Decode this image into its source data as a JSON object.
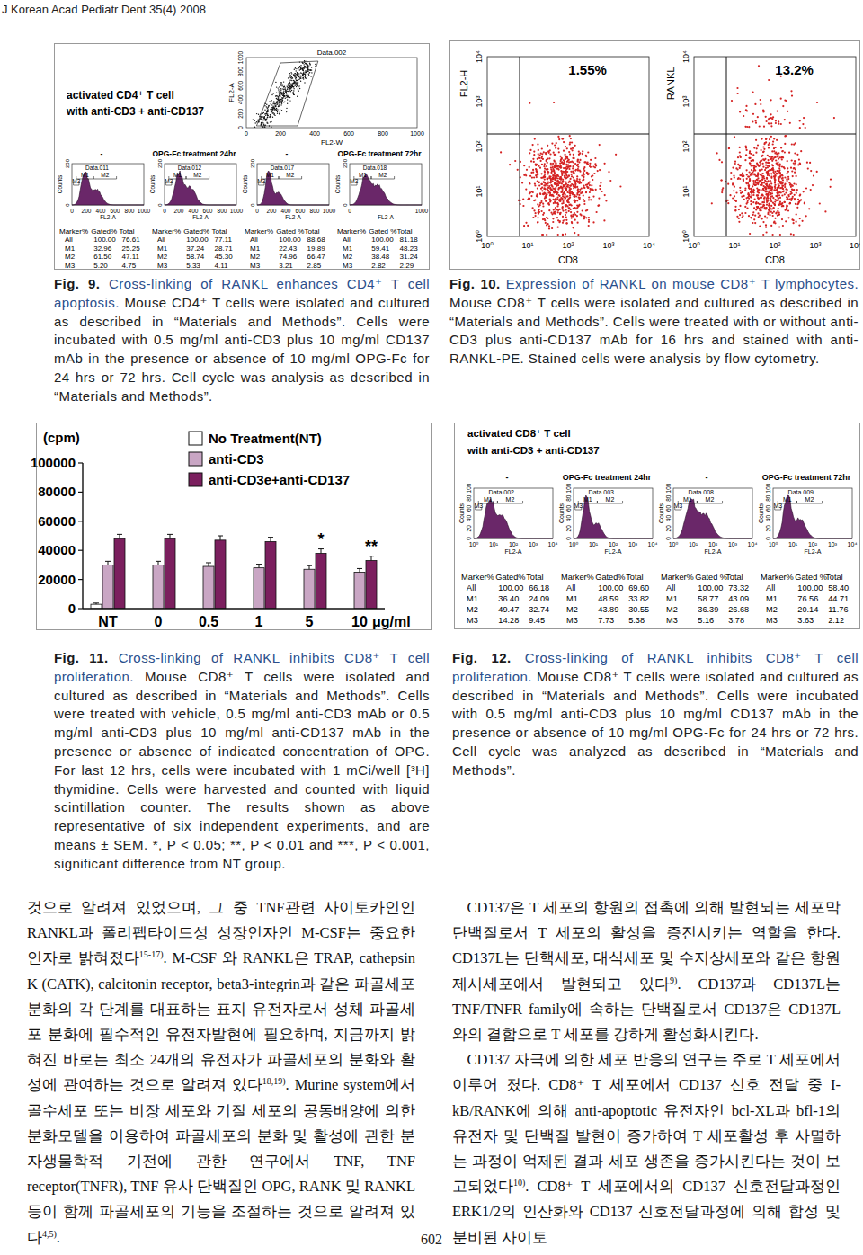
{
  "header": {
    "journal": "J Korean Acad Pediatr Dent 35(4) 2008"
  },
  "fig9": {
    "panel": {
      "title": [
        "activated CD4⁺ T cell",
        "with anti-CD3 + anti-CD137"
      ],
      "dotplot": {
        "title": "Data.002",
        "xlabel": "FL2-W",
        "ylabel": "FL2-A",
        "xticks": [
          "0",
          "200",
          "400",
          "600",
          "800",
          "1000"
        ],
        "yticks": [
          "0",
          "200",
          "400",
          "600",
          "800",
          "1000"
        ]
      },
      "histograms": [
        {
          "condition": "-",
          "data": "Data.011",
          "xlabel": "FL2-A",
          "ylabel": "Counts",
          "xticks": [
            "0",
            "200",
            "400",
            "600",
            "800",
            "1000"
          ],
          "yticks": [
            "0",
            "200"
          ],
          "markers": [
            "M1",
            "M2",
            "M3"
          ],
          "table": {
            "header": [
              "Marker%",
              "Gated%",
              "Total"
            ],
            "rows": [
              [
                "All",
                "100.00",
                "76.61"
              ],
              [
                "M1",
                "32.96",
                "25.25"
              ],
              [
                "M2",
                "61.50",
                "47.11"
              ],
              [
                "M3",
                "5.20",
                "4.75"
              ]
            ]
          }
        },
        {
          "condition": "OPG-Fc treatment 24hr",
          "data": "Data.012",
          "xlabel": "FL2-A",
          "ylabel": "Counts",
          "xticks": [
            "0",
            "200",
            "400",
            "600",
            "800",
            "1000"
          ],
          "yticks": [
            "0",
            "200"
          ],
          "markers": [
            "M1",
            "M2",
            "M3"
          ],
          "table": {
            "header": [
              "Marker%",
              "Gated%",
              "Total"
            ],
            "rows": [
              [
                "All",
                "100.00",
                "77.11"
              ],
              [
                "M1",
                "37.24",
                "28.71"
              ],
              [
                "M2",
                "58.74",
                "45.30"
              ],
              [
                "M3",
                "5.33",
                "4.11"
              ]
            ]
          }
        },
        {
          "condition": "-",
          "data": "Data.017",
          "xlabel": "FL2-A",
          "ylabel": "Counts",
          "xticks": [
            "0",
            "200",
            "400",
            "600",
            "800",
            "1000"
          ],
          "yticks": [
            "0",
            "200"
          ],
          "markers": [
            "M1",
            "M2",
            "M3"
          ],
          "table": {
            "header": [
              "Marker%",
              "Gated %",
              "Total"
            ],
            "rows": [
              [
                "All",
                "100.00",
                "88.68"
              ],
              [
                "M1",
                "22.43",
                "19.89"
              ],
              [
                "M2",
                "74.96",
                "66.47"
              ],
              [
                "M3",
                "3.21",
                "2.85"
              ]
            ]
          }
        },
        {
          "condition": "OPG-Fc treatment 72hr",
          "data": "Data.018",
          "xlabel": "FL2-A",
          "ylabel": "Counts",
          "xticks": [
            "0",
            "1000"
          ],
          "yticks": [
            "0",
            "200"
          ],
          "markers": [
            "M1",
            "M2",
            "M3"
          ],
          "table": {
            "header": [
              "Marker%",
              "Gated %",
              "Total"
            ],
            "rows": [
              [
                "All",
                "100.00",
                "81.18"
              ],
              [
                "M1",
                "59.41",
                "48.23"
              ],
              [
                "M2",
                "38.48",
                "31.24"
              ],
              [
                "M3",
                "2.82",
                "2.29"
              ]
            ]
          }
        }
      ]
    },
    "caption": {
      "label": "Fig. 9.",
      "title": "Cross-linking of RANKL enhances CD4⁺ T cell apoptosis.",
      "body": "Mouse CD4⁺ T cells were isolated and cultured as described in “Materials and Methods”. Cells were incubated with 0.5 mg/ml anti-CD3 plus 10 mg/ml CD137 mAb in the presence or absence of 10 mg/ml OPG-Fc for 24 hrs or 72 hrs. Cell cycle was analysis as described in “Materials and Methods”."
    }
  },
  "fig10": {
    "panel": {
      "ticks": [
        "10⁰",
        "10¹",
        "10²",
        "10³",
        "10⁴"
      ],
      "plots": [
        {
          "percent": "1.55%",
          "ylabel": "FL2-H",
          "xlabel": "CD8"
        },
        {
          "percent": "13.2%",
          "ylabel": "RANKL",
          "xlabel": "CD8"
        }
      ]
    },
    "caption": {
      "label": "Fig. 10.",
      "title": "Expression of RANKL on mouse CD8⁺ T lymphocytes.",
      "body": "Mouse CD8⁺ T cells were isolated and cultured as described in “Materials and Methods”. Cells were treated with or without anti-CD3 plus anti-CD137 mAb for 16 hrs and stained with anti-RANKL-PE. Stained cells were analysis by flow cytometry."
    }
  },
  "chart_data": {
    "type": "bar",
    "ylabel": "(cpm)",
    "xlabel": "μg/ml",
    "categories": [
      "NT",
      "0",
      "0.5",
      "1",
      "5",
      "10"
    ],
    "series": [
      {
        "name": "No Treatment(NT)",
        "color": "#ffffff",
        "values": [
          3000,
          null,
          null,
          null,
          null,
          null
        ],
        "errors": [
          800,
          null,
          null,
          null,
          null,
          null
        ]
      },
      {
        "name": "anti-CD3",
        "color": "#c9a6c4",
        "values": [
          30000,
          30000,
          29000,
          28000,
          27000,
          25000
        ],
        "errors": [
          2500,
          2500,
          2500,
          2500,
          2500,
          2500
        ]
      },
      {
        "name": "anti-CD3e+anti-CD137",
        "color": "#7b1f5e",
        "values": [
          48000,
          48000,
          47000,
          46000,
          38000,
          33000
        ],
        "errors": [
          3000,
          3000,
          3000,
          3000,
          3000,
          3000
        ]
      }
    ],
    "ylim": [
      0,
      100000
    ],
    "yticks": [
      0,
      20000,
      40000,
      60000,
      80000,
      100000
    ],
    "grid": false,
    "legend": "top-right",
    "annotations": [
      {
        "category": "5",
        "text": "*"
      },
      {
        "category": "10",
        "text": "**"
      }
    ]
  },
  "fig11": {
    "caption": {
      "label": "Fig. 11.",
      "title": "Cross-linking of RANKL inhibits CD8⁺ T cell proliferation.",
      "body": "Mouse CD8⁺ T cells were isolated and cultured as described in “Materials and Methods”. Cells were treated with vehicle, 0.5 mg/ml anti-CD3 mAb or 0.5 mg/ml anti-CD3 plus 10 mg/ml anti-CD137 mAb in the presence or absence of indicated concentration of OPG. For last 12 hrs, cells were incubated with 1 mCi/well [³H] thymidine. Cells were harvested and counted with liquid scintillation counter. The results shown as above representative of six independent experiments, and are means ± SEM. *, P < 0.05; **, P < 0.01 and ***, P < 0.001, significant difference from NT group."
    }
  },
  "fig12": {
    "panel": {
      "title": [
        "activated CD8⁺ T cell",
        "with anti-CD3 + anti-CD137"
      ],
      "histograms": [
        {
          "condition": "-",
          "data": "Data.002",
          "xlabel": "FL2-A",
          "ylabel": "Counts",
          "xticks": [
            "10⁰",
            "10¹",
            "10²",
            "10³",
            "10⁴"
          ],
          "yticks": [
            "0",
            "20",
            "40",
            "60",
            "80",
            "100"
          ],
          "markers": [
            "M1",
            "M2",
            "M3"
          ],
          "table": {
            "header": [
              "Marker%",
              "Gated%",
              "Total"
            ],
            "rows": [
              [
                "All",
                "100.00",
                "66.18"
              ],
              [
                "M1",
                "36.40",
                "24.09"
              ],
              [
                "M2",
                "49.47",
                "32.74"
              ],
              [
                "M3",
                "14.28",
                "9.45"
              ]
            ]
          }
        },
        {
          "condition": "OPG-Fc treatment 24hr",
          "data": "Data.003",
          "xlabel": "FL2-A",
          "ylabel": "Counts",
          "xticks": [
            "10⁰",
            "10¹",
            "10²",
            "10³",
            "10⁴"
          ],
          "yticks": [
            "0",
            "20",
            "40",
            "60",
            "80",
            "100"
          ],
          "markers": [
            "M1",
            "M2",
            "M3"
          ],
          "table": {
            "header": [
              "Marker%",
              "Gated%",
              "Total"
            ],
            "rows": [
              [
                "All",
                "100.00",
                "69.60"
              ],
              [
                "M1",
                "48.59",
                "33.82"
              ],
              [
                "M2",
                "43.89",
                "30.55"
              ],
              [
                "M3",
                "7.73",
                "5.38"
              ]
            ]
          }
        },
        {
          "condition": "-",
          "data": "Data.008",
          "xlabel": "FL2-A",
          "ylabel": "Counts",
          "xticks": [
            "10⁰",
            "10¹",
            "10²",
            "10³",
            "10⁴"
          ],
          "yticks": [
            "0",
            "20",
            "40",
            "60",
            "80",
            "100"
          ],
          "markers": [
            "M1",
            "M2",
            "M3"
          ],
          "table": {
            "header": [
              "Marker%",
              "Gated %",
              "Total"
            ],
            "rows": [
              [
                "All",
                "100.00",
                "73.32"
              ],
              [
                "M1",
                "58.77",
                "43.09"
              ],
              [
                "M2",
                "36.39",
                "26.68"
              ],
              [
                "M3",
                "5.16",
                "3.78"
              ]
            ]
          }
        },
        {
          "condition": "OPG-Fc treatment 72hr",
          "data": "Data.009",
          "xlabel": "FL2-A",
          "ylabel": "Counts",
          "xticks": [
            "10⁰",
            "10¹",
            "10²",
            "10³",
            "10⁴"
          ],
          "yticks": [
            "0",
            "20",
            "40",
            "60",
            "80",
            "100"
          ],
          "markers": [
            "M1",
            "M2",
            "M3"
          ],
          "table": {
            "header": [
              "Marker%",
              "Gated %",
              "Total"
            ],
            "rows": [
              [
                "All",
                "100.00",
                "58.40"
              ],
              [
                "M1",
                "76.56",
                "44.71"
              ],
              [
                "M2",
                "20.14",
                "11.76"
              ],
              [
                "M3",
                "3.63",
                "2.12"
              ]
            ]
          }
        }
      ]
    },
    "caption": {
      "label": "Fig. 12.",
      "title": "Cross-linking of RANKL inhibits CD8⁺ T cell proliferation.",
      "body": "Mouse CD8⁺ T cells were isolated and cultured as described in “Materials and Methods”. Cells were incubated with 0.5 mg/ml anti-CD3 plus 10 mg/ml CD137 mAb in the presence or absence of 10 mg/ml OPG-Fc for 24 hrs or 72 hrs. Cell cycle was analyzed as described in “Materials and Methods”."
    }
  },
  "body": {
    "columns": [
      {
        "paragraphs": [
          {
            "parts": [
              "것으로 알려져 있었으며, 그 중 TNF관련 사이토카인인 RANKL과 폴리펩타이드성 성장인자인 M-CSF는 중요한 인자로 밝혀졌다",
              {
                "sup": "15-17)"
              },
              ". M-CSF 와 RANKL은 TRAP, cathepsin K (CATK), calcitonin receptor, beta3-integrin과 같은 파골세포분화의 각 단계를 대표하는 표지 유전자로서 성체 파골세포 분화에 필수적인 유전자발현에 필요하며, 지금까지 밝혀진 바로는 최소 24개의 유전자가 파골세포의 분화와 활성에 관여하는 것으로 알려져 있다",
              {
                "sup": "18,19)"
              },
              ". Murine system에서 골수세포 또는 비장 세포와 기질 세포의 공동배양에 의한 분화모델을 이용하여 파골세포의 분화 및 활성에 관한 분자생물학적 기전에 관한 연구에서 TNF, TNF receptor(TNFR), TNF 유사 단백질인 OPG, RANK 및 RANKL 등이 함께 파골세포의 기능을 조절하는 것으로 알려져 있다",
              {
                "sup": "4,5)"
              },
              "."
            ]
          }
        ]
      },
      {
        "paragraphs": [
          {
            "parts": [
              "CD137은 T 세포의 항원의 접촉에 의해 발현되는 세포막 단백질로서 T 세포의 활성을 증진시키는 역할을 한다. CD137L는 단핵세포, 대식세포 및 수지상세포와 같은 항원제시세포에서 발현되고 있다",
              {
                "sup": "9)"
              },
              ". CD137과 CD137L는 TNF/TNFR family에 속하는 단백질로서 CD137은 CD137L와의 결합으로 T 세포를 강하게 활성화시킨다."
            ]
          },
          {
            "parts": [
              "CD137 자극에 의한 세포 반응의 연구는 주로 T 세포에서 이루어 졌다. CD8⁺ T 세포에서 CD137 신호 전달 중 I-kB/RANK에 의해 anti-apoptotic 유전자인 bcl-XL과 bfl-1의 유전자 및 단백질 발현이 증가하여 T 세포활성 후 사멸하는 과정이 억제된 결과 세포 생존을 증가시킨다는 것이 보고되었다",
              {
                "sup": "10)"
              },
              ". CD8⁺ T 세포에서의 CD137 신호전달과정인 ERK1/2의 인산화와 CD137 신호전달과정에 의해 합성 및 분비된 사이토"
            ]
          }
        ]
      }
    ]
  },
  "footer": {
    "page": "602"
  }
}
